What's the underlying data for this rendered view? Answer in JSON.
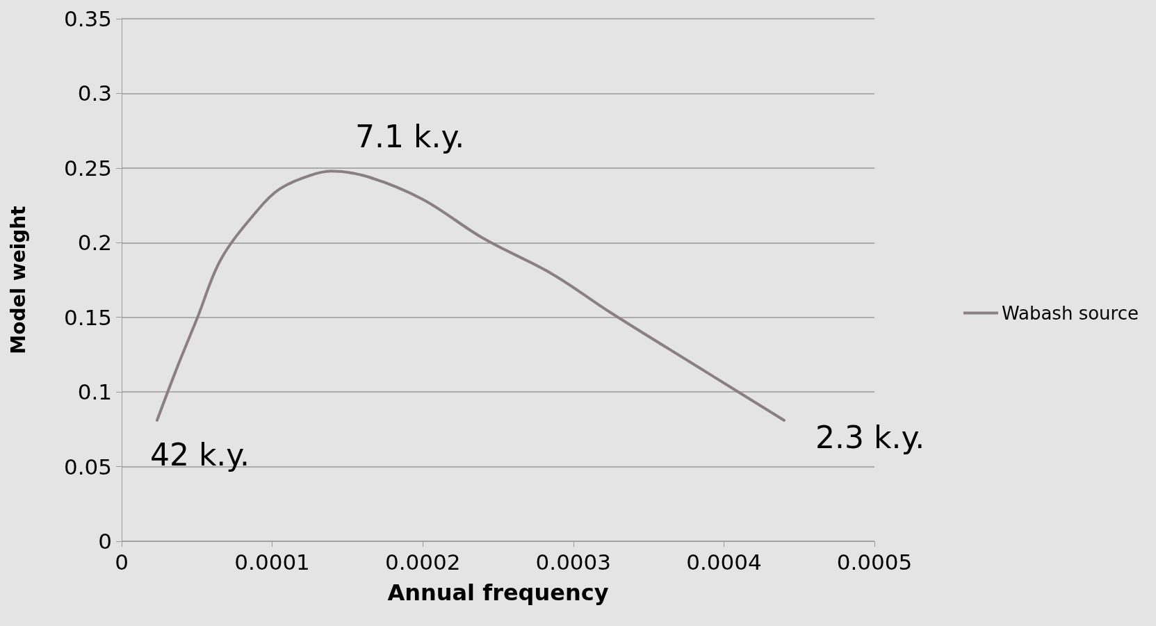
{
  "chart_data": {
    "type": "line",
    "xlabel": "Annual frequency",
    "ylabel": "Model weight",
    "series": [
      {
        "name": "Wabash source",
        "color": "#8a8082",
        "x": [
          2.35e-05,
          3.67e-05,
          5.04e-05,
          6.6e-05,
          9.05e-05,
          0.000105,
          0.000125,
          0.000139,
          0.000164,
          0.0002,
          0.00024,
          0.000286,
          0.000325,
          0.000384,
          0.00044
        ],
        "values": [
          0.081,
          0.116,
          0.15,
          0.189,
          0.222,
          0.236,
          0.245,
          0.248,
          0.244,
          0.229,
          0.203,
          0.179,
          0.153,
          0.116,
          0.081
        ]
      }
    ],
    "annotations": [
      {
        "text": "42 k.y.",
        "x": 2.35e-05,
        "y": 0.081
      },
      {
        "text": "7.1 k.y.",
        "x": 0.000139,
        "y": 0.248
      },
      {
        "text": "2.3 k.y.",
        "x": 0.00044,
        "y": 0.081
      }
    ],
    "xlim": [
      0,
      0.0005
    ],
    "xticks": [
      0,
      0.0001,
      0.0002,
      0.0003,
      0.0004,
      0.0005
    ],
    "ylim": [
      0,
      0.35
    ],
    "yticks": [
      0,
      0.05,
      0.1,
      0.15,
      0.2,
      0.25,
      0.3,
      0.35
    ],
    "grid": "y",
    "legend": "right",
    "marker": "none",
    "line_style": "solid"
  }
}
